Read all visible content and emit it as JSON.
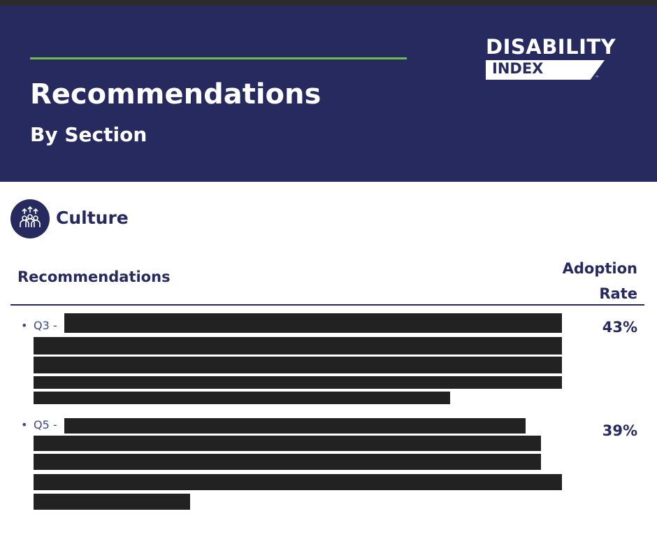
{
  "header": {
    "logo": {
      "line1": "DISABILITY",
      "line2": "INDEX",
      "mark": "™"
    },
    "title": "Recommendations",
    "subtitle": "By Section"
  },
  "section": {
    "title": "Culture"
  },
  "table": {
    "columns": [
      "Recommendations",
      "Adoption Rate"
    ],
    "rows": [
      [
        "Q3 -",
        "43%"
      ],
      [
        "Q5 -",
        "39%"
      ]
    ]
  }
}
